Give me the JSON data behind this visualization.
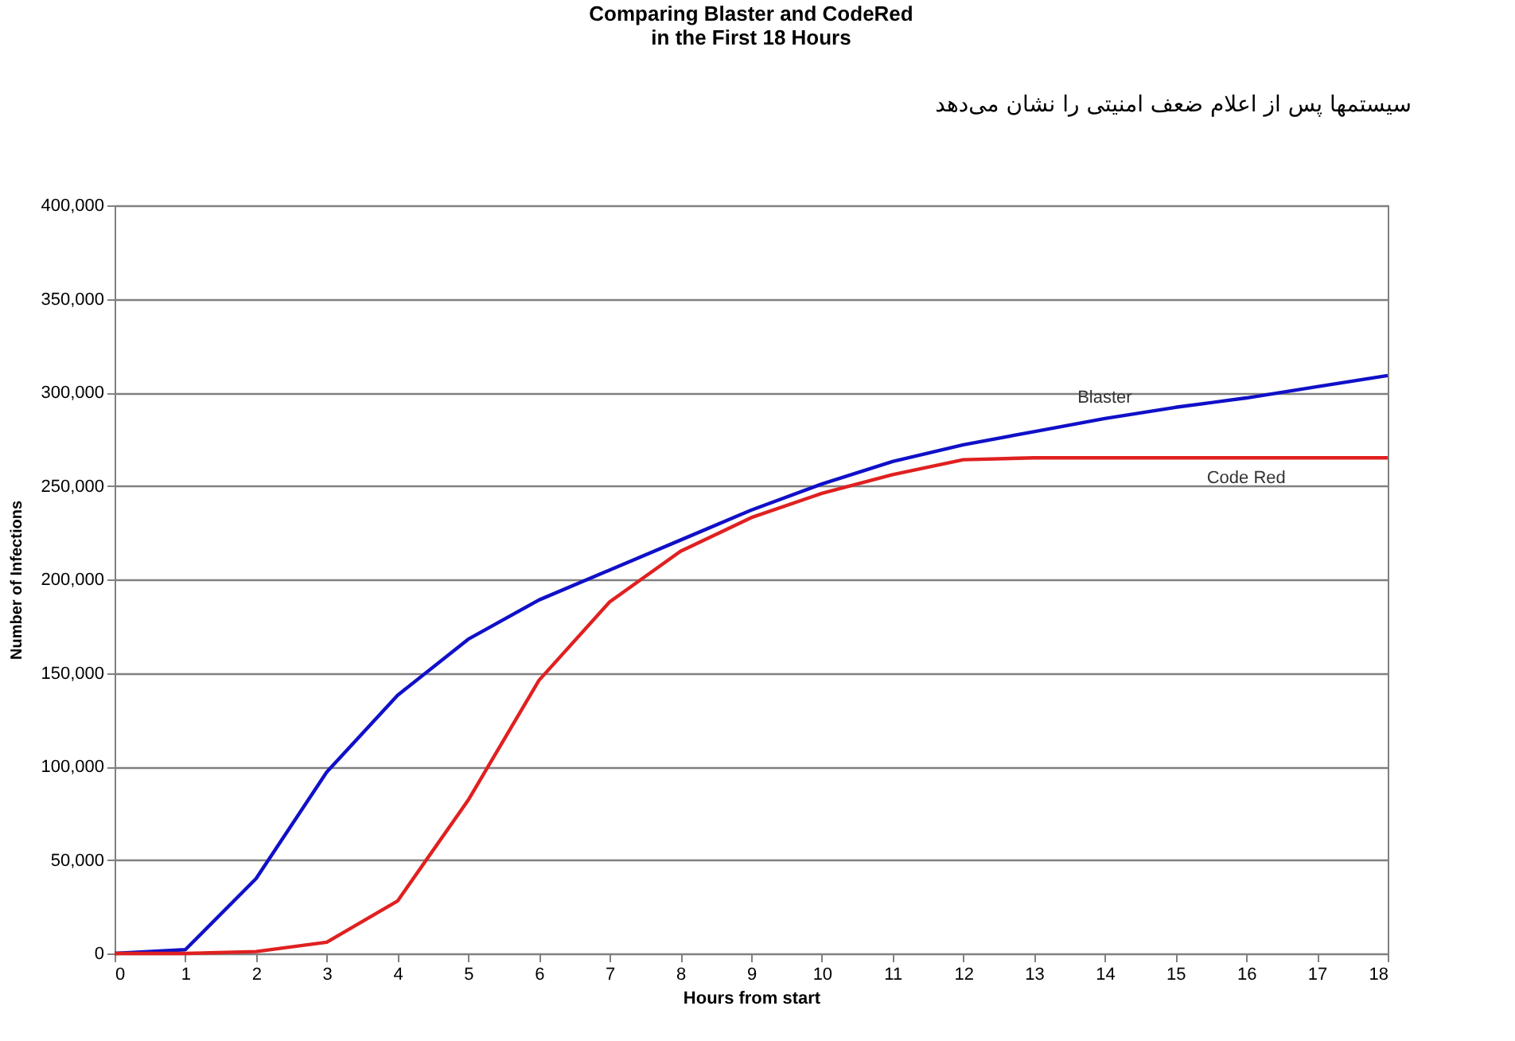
{
  "chart_data": {
    "type": "line",
    "title": "Comparing Blaster and CodeRed\nin the First 18 Hours",
    "xlabel": "Hours from start",
    "ylabel": "Number of Infections",
    "x": [
      0,
      1,
      2,
      3,
      4,
      5,
      6,
      7,
      8,
      9,
      10,
      11,
      12,
      13,
      14,
      15,
      16,
      17,
      18
    ],
    "series": [
      {
        "name": "Blaster",
        "color": "#1010c8",
        "values": [
          0,
          2000,
          40000,
          97000,
          138000,
          168000,
          189000,
          205000,
          221000,
          237000,
          251000,
          263000,
          272000,
          279000,
          286000,
          292000,
          297000,
          303000,
          309000
        ]
      },
      {
        "name": "Code Red",
        "color": "#e02020",
        "values": [
          0,
          0,
          1000,
          6000,
          28000,
          82000,
          146000,
          188000,
          215000,
          233000,
          246000,
          256000,
          264000,
          265000,
          265000,
          265000,
          265000,
          265000,
          265000
        ]
      }
    ],
    "xlim": [
      0,
      18
    ],
    "xticks": [
      0,
      1,
      2,
      3,
      4,
      5,
      6,
      7,
      8,
      9,
      10,
      11,
      12,
      13,
      14,
      15,
      16,
      17,
      18
    ],
    "ylim": [
      0,
      400000
    ],
    "yticks": [
      0,
      {
        "value": 50000,
        "label": "50,000"
      },
      {
        "value": 100000,
        "label": "100,000"
      },
      {
        "value": 150000,
        "label": "150,000"
      },
      {
        "value": 200000,
        "label": "200,000"
      },
      {
        "value": 250000,
        "label": "250,000"
      },
      {
        "value": 300000,
        "label": "300,000"
      },
      {
        "value": 350000,
        "label": "350,000"
      },
      {
        "value": 400000,
        "label": "400,000"
      }
    ],
    "grid": "y",
    "legend": false,
    "marker": "none",
    "line_style": "solid",
    "annotations": [
      "سیستمها پس از اعلام ضعف امنیتی را نشان می‌دهد"
    ]
  }
}
